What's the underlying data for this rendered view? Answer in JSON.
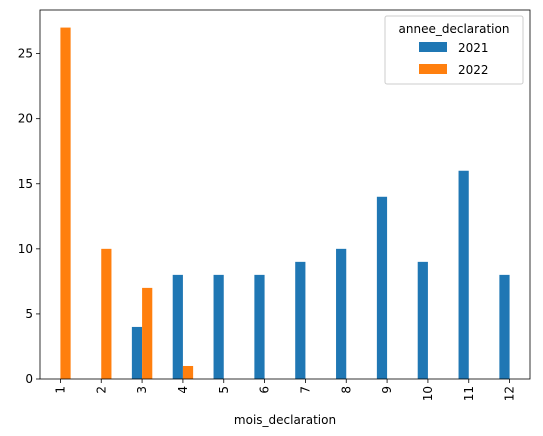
{
  "chart_data": {
    "type": "bar",
    "title": "",
    "xlabel": "mois_declaration",
    "ylabel": "",
    "categories": [
      "1",
      "2",
      "3",
      "4",
      "5",
      "6",
      "7",
      "8",
      "9",
      "10",
      "11",
      "12"
    ],
    "series": [
      {
        "name": "2021",
        "color": "#1f77b4",
        "values": [
          0,
          0,
          4,
          8,
          8,
          8,
          9,
          10,
          14,
          9,
          16,
          8
        ]
      },
      {
        "name": "2022",
        "color": "#ff7f0e",
        "values": [
          27,
          10,
          7,
          1,
          0,
          0,
          0,
          0,
          0,
          0,
          0,
          0
        ]
      }
    ],
    "ylim": [
      0,
      28.35
    ],
    "yticks": [
      0,
      5,
      10,
      15,
      20,
      25
    ],
    "grid": false,
    "legend": {
      "title": "annee_declaration",
      "placement": "top-right"
    }
  }
}
